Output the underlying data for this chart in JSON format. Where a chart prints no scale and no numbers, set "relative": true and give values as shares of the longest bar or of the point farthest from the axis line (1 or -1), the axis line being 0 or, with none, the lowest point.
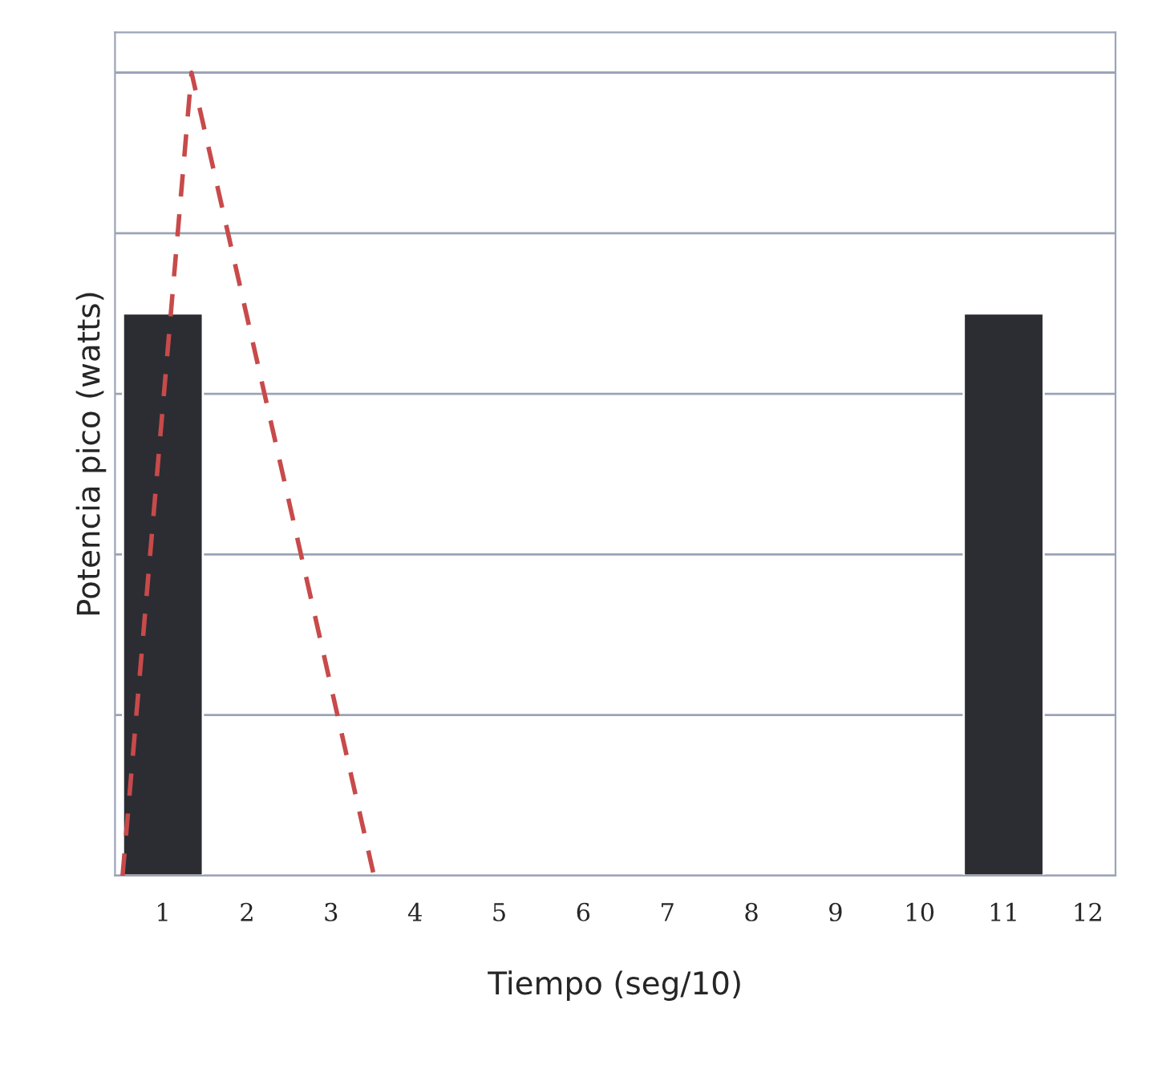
{
  "chart_data": {
    "type": "bar",
    "relative": true,
    "xlabel": "Tiempo (seg/10)",
    "ylabel": "Potencia pico (watts)",
    "xlim": [
      0.43,
      12.33
    ],
    "xticks": [
      1,
      2,
      3,
      4,
      5,
      6,
      7,
      8,
      9,
      10,
      11,
      12
    ],
    "grid": "y",
    "legend": false,
    "series": [
      {
        "color": "#2b2d33",
        "x": [
          1,
          11
        ],
        "values": [
          0.7,
          0.7
        ]
      },
      {
        "type": "line",
        "color": "#c84a4a",
        "line_style": "dashed",
        "marker": "none",
        "x": [
          0.52,
          1.34,
          3.51
        ],
        "values": [
          0,
          1,
          0
        ]
      }
    ]
  }
}
